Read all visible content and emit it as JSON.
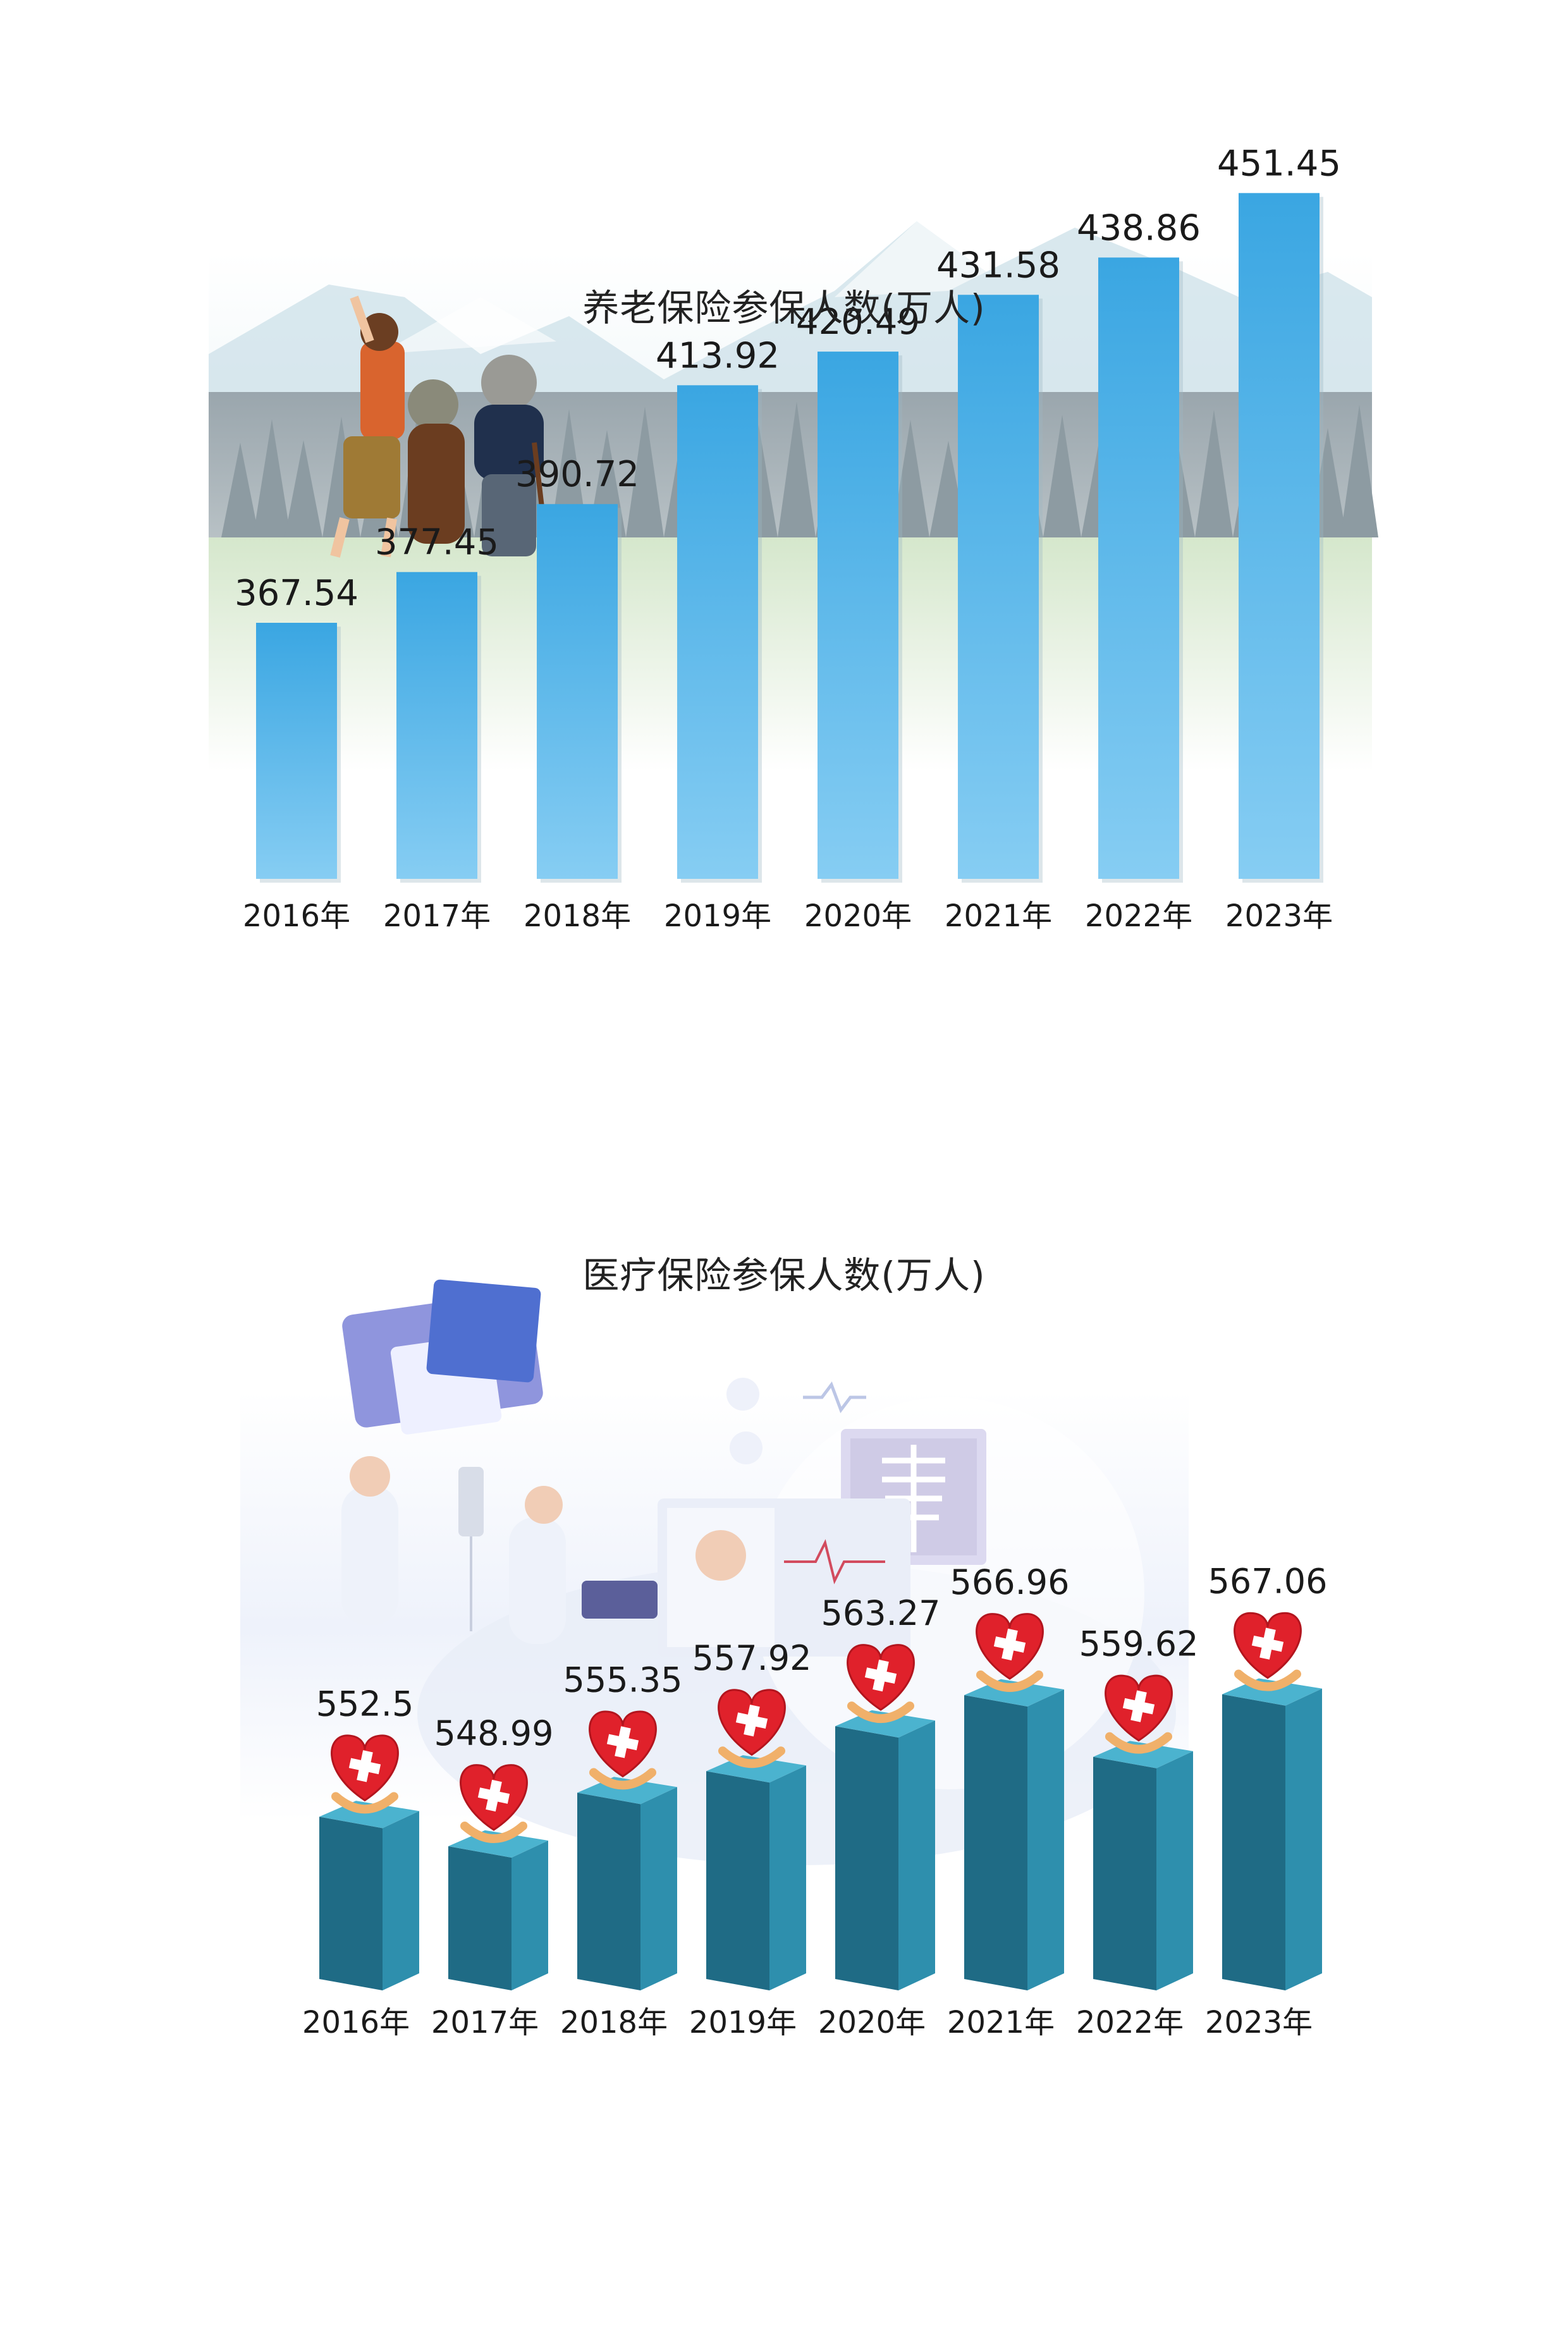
{
  "chart_data": [
    {
      "type": "bar",
      "title": "养老保险参保人数(万人)",
      "categories": [
        "2016年",
        "2017年",
        "2018年",
        "2019年",
        "2020年",
        "2021年",
        "2022年",
        "2023年"
      ],
      "values": [
        367.54,
        377.45,
        390.72,
        413.92,
        420.49,
        431.58,
        438.86,
        451.45
      ],
      "value_labels": [
        "367.54",
        "377.45",
        "390.72",
        "413.92",
        "420.49",
        "431.58",
        "438.86",
        "451.45"
      ],
      "colors": {
        "bar_top": "#3aa6e2",
        "bar_bottom": "#86cdf3"
      },
      "grid": false
    },
    {
      "type": "bar",
      "title": "医疗保险参保人数(万人)",
      "categories": [
        "2016年",
        "2017年",
        "2018年",
        "2019年",
        "2020年",
        "2021年",
        "2022年",
        "2023年"
      ],
      "values": [
        552.5,
        548.99,
        555.35,
        557.92,
        563.27,
        566.96,
        559.62,
        567.06
      ],
      "value_labels": [
        "552.5",
        "548.99",
        "555.35",
        "557.92",
        "563.27",
        "566.96",
        "559.62",
        "567.06"
      ],
      "colors": {
        "bar_front": "#2e8fad",
        "bar_side": "#1f6b85",
        "bar_top": "#4bb3cf",
        "heart": "#e0212b"
      },
      "grid": false
    }
  ]
}
